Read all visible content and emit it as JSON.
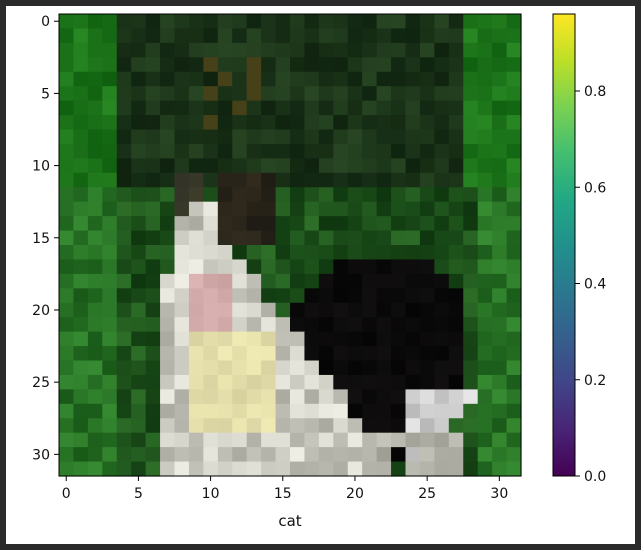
{
  "image": {
    "label": "cat",
    "grid_size": 32,
    "description_subject": "pixelated photo thumbnail"
  },
  "axes": {
    "xticks": [
      "0",
      "5",
      "10",
      "15",
      "20",
      "25",
      "30"
    ],
    "yticks": [
      "0",
      "5",
      "10",
      "15",
      "20",
      "25",
      "30"
    ],
    "x_tick_values": [
      0,
      5,
      10,
      15,
      20,
      25,
      30
    ],
    "y_tick_values": [
      0,
      5,
      10,
      15,
      20,
      25,
      30
    ],
    "xlabel": "cat"
  },
  "colorbar": {
    "colormap": "viridis",
    "range": [
      0.0,
      0.96
    ],
    "tick_values": [
      0.0,
      0.2,
      0.4,
      0.6,
      0.8
    ],
    "tick_labels": [
      "0.0",
      "0.2",
      "0.4",
      "0.6",
      "0.8"
    ]
  }
}
